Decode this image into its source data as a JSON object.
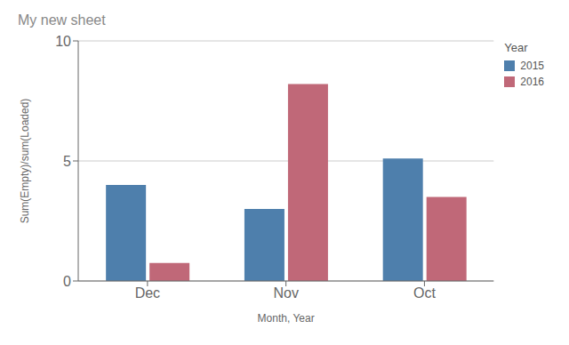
{
  "chart_data": {
    "type": "bar",
    "title": "My new sheet",
    "xlabel": "Month, Year",
    "ylabel": "Sum(Empty)/sum(Loaded)",
    "legend_title": "Year",
    "categories": [
      "Dec",
      "Nov",
      "Oct"
    ],
    "series": [
      {
        "name": "2015",
        "color": "#4e7fac",
        "values": [
          4.0,
          3.0,
          5.1
        ]
      },
      {
        "name": "2016",
        "color": "#c06878",
        "values": [
          0.75,
          8.2,
          3.5
        ]
      }
    ],
    "ylim": [
      0,
      10
    ],
    "yticks": [
      0,
      5,
      10
    ],
    "grid": true,
    "legend": "upper right"
  }
}
